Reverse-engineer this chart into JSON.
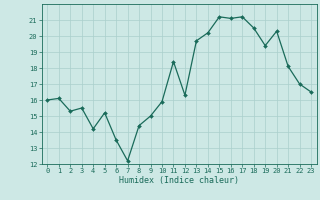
{
  "x_full": [
    0,
    1,
    2,
    3,
    4,
    5,
    6,
    7,
    8,
    9,
    10,
    11,
    12,
    13,
    14,
    15,
    16,
    17,
    18,
    19,
    20,
    21,
    22,
    23
  ],
  "y_full": [
    16.0,
    16.1,
    15.3,
    15.5,
    14.2,
    15.2,
    13.5,
    12.2,
    14.4,
    15.0,
    15.9,
    18.4,
    16.3,
    19.7,
    20.2,
    21.2,
    21.1,
    21.2,
    20.5,
    19.4,
    20.3,
    18.1,
    17.0,
    16.5
  ],
  "line_color": "#1a6b5a",
  "bg_color": "#cde8e5",
  "grid_color": "#aacfcc",
  "xlabel": "Humidex (Indice chaleur)",
  "ylim": [
    12,
    22
  ],
  "xlim": [
    -0.5,
    23.5
  ],
  "yticks": [
    12,
    13,
    14,
    15,
    16,
    17,
    18,
    19,
    20,
    21
  ],
  "xticks": [
    0,
    1,
    2,
    3,
    4,
    5,
    6,
    7,
    8,
    9,
    10,
    11,
    12,
    13,
    14,
    15,
    16,
    17,
    18,
    19,
    20,
    21,
    22,
    23
  ],
  "font_color": "#1a6b5a",
  "markersize": 2.0,
  "linewidth": 0.9,
  "tick_fontsize": 5.0,
  "xlabel_fontsize": 6.0
}
